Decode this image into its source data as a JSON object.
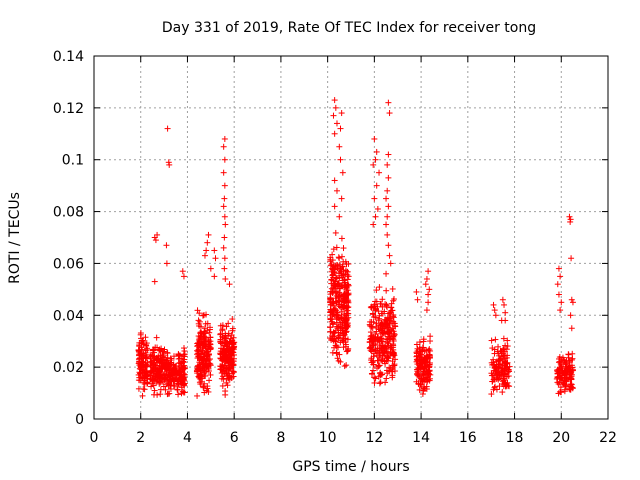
{
  "chart_data": {
    "type": "scatter",
    "title": "Day 331 of 2019, Rate Of TEC Index for receiver tong",
    "xlabel": "GPS time / hours",
    "ylabel": "ROTI / TECUs",
    "xlim": [
      0,
      22
    ],
    "ylim": [
      0,
      0.14
    ],
    "xticks": [
      0,
      2,
      4,
      6,
      8,
      10,
      12,
      14,
      16,
      18,
      20,
      22
    ],
    "yticks": [
      0,
      0.02,
      0.04,
      0.06,
      0.08,
      0.1,
      0.12,
      0.14
    ],
    "xtick_labels": [
      "0",
      "2",
      "4",
      "6",
      "8",
      "10",
      "12",
      "14",
      "16",
      "18",
      "20",
      "22"
    ],
    "ytick_labels": [
      "0",
      "0.02",
      "0.04",
      "0.06",
      "0.08",
      "0.1",
      "0.12",
      "0.14"
    ],
    "grid": true,
    "marker": "+",
    "color": "#ff0000",
    "series": [
      {
        "name": "ROTI",
        "clusters": [
          {
            "x_range": [
              1.9,
              2.3
            ],
            "y_range": [
              0.006,
              0.038
            ],
            "count": 120
          },
          {
            "x_range": [
              2.4,
              3.0
            ],
            "y_range": [
              0.007,
              0.032
            ],
            "count": 140
          },
          {
            "x_range": [
              3.0,
              3.9
            ],
            "y_range": [
              0.007,
              0.03
            ],
            "count": 200
          },
          {
            "x_range": [
              4.4,
              5.0
            ],
            "y_range": [
              0.006,
              0.045
            ],
            "count": 200
          },
          {
            "x_range": [
              5.4,
              6.0
            ],
            "y_range": [
              0.008,
              0.04
            ],
            "count": 200
          },
          {
            "x_range": [
              10.1,
              10.9
            ],
            "y_range": [
              0.015,
              0.075
            ],
            "count": 320
          },
          {
            "x_range": [
              11.8,
              12.9
            ],
            "y_range": [
              0.008,
              0.055
            ],
            "count": 300
          },
          {
            "x_range": [
              13.8,
              14.4
            ],
            "y_range": [
              0.006,
              0.035
            ],
            "count": 150
          },
          {
            "x_range": [
              17.0,
              17.8
            ],
            "y_range": [
              0.006,
              0.035
            ],
            "count": 130
          },
          {
            "x_range": [
              19.8,
              20.5
            ],
            "y_range": [
              0.005,
              0.03
            ],
            "count": 130
          }
        ],
        "points": [
          [
            3.15,
            0.112
          ],
          [
            3.2,
            0.099
          ],
          [
            3.22,
            0.098
          ],
          [
            2.6,
            0.07
          ],
          [
            2.65,
            0.069
          ],
          [
            2.7,
            0.071
          ],
          [
            3.1,
            0.067
          ],
          [
            3.12,
            0.06
          ],
          [
            2.6,
            0.053
          ],
          [
            3.8,
            0.057
          ],
          [
            3.85,
            0.055
          ],
          [
            4.9,
            0.071
          ],
          [
            4.85,
            0.068
          ],
          [
            4.8,
            0.065
          ],
          [
            4.75,
            0.063
          ],
          [
            5.0,
            0.058
          ],
          [
            5.15,
            0.065
          ],
          [
            5.2,
            0.062
          ],
          [
            5.15,
            0.055
          ],
          [
            5.6,
            0.108
          ],
          [
            5.55,
            0.105
          ],
          [
            5.6,
            0.1
          ],
          [
            5.55,
            0.095
          ],
          [
            5.6,
            0.09
          ],
          [
            5.58,
            0.085
          ],
          [
            5.55,
            0.082
          ],
          [
            5.6,
            0.078
          ],
          [
            5.62,
            0.075
          ],
          [
            5.58,
            0.07
          ],
          [
            5.55,
            0.066
          ],
          [
            5.6,
            0.062
          ],
          [
            5.58,
            0.058
          ],
          [
            5.62,
            0.054
          ],
          [
            5.8,
            0.052
          ],
          [
            10.3,
            0.123
          ],
          [
            10.35,
            0.12
          ],
          [
            10.25,
            0.117
          ],
          [
            10.4,
            0.114
          ],
          [
            10.3,
            0.11
          ],
          [
            10.6,
            0.118
          ],
          [
            10.55,
            0.112
          ],
          [
            10.5,
            0.105
          ],
          [
            10.55,
            0.1
          ],
          [
            10.65,
            0.095
          ],
          [
            10.3,
            0.092
          ],
          [
            10.4,
            0.088
          ],
          [
            10.6,
            0.085
          ],
          [
            10.3,
            0.082
          ],
          [
            10.5,
            0.078
          ],
          [
            12.0,
            0.108
          ],
          [
            12.1,
            0.103
          ],
          [
            12.05,
            0.1
          ],
          [
            11.95,
            0.098
          ],
          [
            12.2,
            0.095
          ],
          [
            12.1,
            0.09
          ],
          [
            12.0,
            0.085
          ],
          [
            12.15,
            0.081
          ],
          [
            12.05,
            0.078
          ],
          [
            11.95,
            0.075
          ],
          [
            12.6,
            0.122
          ],
          [
            12.65,
            0.118
          ],
          [
            12.6,
            0.102
          ],
          [
            12.55,
            0.098
          ],
          [
            12.6,
            0.093
          ],
          [
            12.55,
            0.088
          ],
          [
            12.5,
            0.085
          ],
          [
            12.6,
            0.082
          ],
          [
            12.55,
            0.078
          ],
          [
            12.5,
            0.075
          ],
          [
            12.55,
            0.071
          ],
          [
            12.6,
            0.067
          ],
          [
            12.65,
            0.063
          ],
          [
            12.7,
            0.06
          ],
          [
            12.5,
            0.056
          ],
          [
            14.3,
            0.057
          ],
          [
            14.25,
            0.054
          ],
          [
            14.2,
            0.052
          ],
          [
            14.35,
            0.05
          ],
          [
            14.3,
            0.048
          ],
          [
            13.8,
            0.049
          ],
          [
            13.85,
            0.046
          ],
          [
            14.3,
            0.045
          ],
          [
            14.25,
            0.042
          ],
          [
            17.1,
            0.044
          ],
          [
            17.15,
            0.042
          ],
          [
            17.5,
            0.046
          ],
          [
            17.55,
            0.044
          ],
          [
            17.2,
            0.04
          ],
          [
            17.6,
            0.041
          ],
          [
            17.45,
            0.038
          ],
          [
            17.6,
            0.038
          ],
          [
            19.9,
            0.058
          ],
          [
            19.95,
            0.055
          ],
          [
            19.85,
            0.052
          ],
          [
            19.9,
            0.048
          ],
          [
            20.0,
            0.045
          ],
          [
            19.95,
            0.042
          ],
          [
            20.35,
            0.078
          ],
          [
            20.4,
            0.077
          ],
          [
            20.38,
            0.076
          ],
          [
            20.42,
            0.062
          ],
          [
            20.45,
            0.046
          ],
          [
            20.5,
            0.045
          ],
          [
            20.4,
            0.04
          ],
          [
            20.45,
            0.035
          ]
        ]
      }
    ]
  }
}
